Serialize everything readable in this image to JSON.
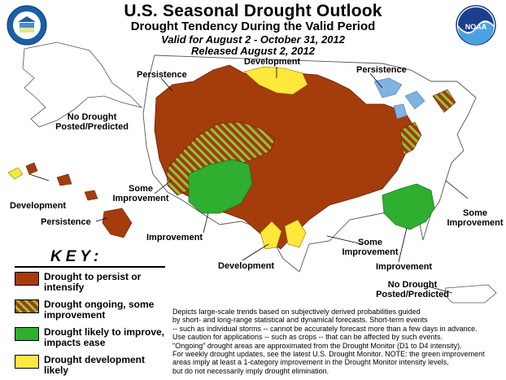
{
  "header": {
    "title": "U.S. Seasonal Drought Outlook",
    "subtitle": "Drought Tendency During the Valid Period",
    "valid": "Valid for August 2 - October 31, 2012",
    "released": "Released August 2, 2012"
  },
  "map_labels": {
    "development_north": "Development",
    "persistence_west": "Persistence",
    "persistence_east": "Persistence",
    "no_drought_alaska": [
      "No Drought",
      "Posted/Predicted"
    ],
    "development_hawaii": "Development",
    "persistence_hawaii": "Persistence",
    "some_improvement_west": [
      "Some",
      "Improvement"
    ],
    "improvement_southwest": "Improvement",
    "development_texas": "Development",
    "some_improvement_gulf": [
      "Some",
      "Improvement"
    ],
    "improvement_southeast": "Improvement",
    "some_improvement_east": [
      "Some",
      "Improvement"
    ],
    "no_drought_pr": [
      "No Drought",
      "Posted/Predicted"
    ]
  },
  "key": {
    "title": "KEY:",
    "items": [
      {
        "label": [
          "Drought to persist or",
          "intensify"
        ],
        "color": "#a43c0c",
        "pattern": "solid"
      },
      {
        "label": [
          "Drought ongoing, some",
          "improvement"
        ],
        "color": "#a43c0c",
        "stripe": "#8cc63e",
        "pattern": "stripes"
      },
      {
        "label": [
          "Drought likely to improve,",
          "impacts ease"
        ],
        "color": "#2fae2f",
        "pattern": "solid"
      },
      {
        "label": [
          "Drought development",
          "likely"
        ],
        "color": "#ffe83c",
        "pattern": "solid"
      }
    ]
  },
  "notes": [
    "Depicts large-scale trends based on subjectively derived probabilities guided",
    "by short- and long-range statistical and dynamical forecasts. Short-term events",
    "-- such as individual storms -- cannot be accurately forecast more than a few days in advance.",
    "Use caution for applications -- such as crops -- that can be affected by such events.",
    "\"Ongoing\" drought areas are approximated from the Drought Monitor (D1 to D4 intensity).",
    "For weekly drought updates, see the latest U.S. Drought Monitor. NOTE: the green improvement",
    "areas imply at least a 1-category improvement in the Drought Monitor intensity levels,",
    "but do not necessarily imply drought elimination."
  ],
  "logos": {
    "left": "seal-icon",
    "right": "noaa-logo-icon",
    "noaa_text": "NOAA"
  },
  "colors": {
    "persist": "#a43c0c",
    "improve": "#2fae2f",
    "develop": "#ffe83c",
    "water": "#7fb3e0"
  }
}
